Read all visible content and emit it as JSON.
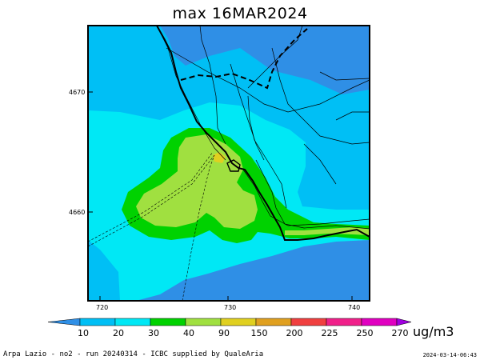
{
  "title": "max 16MAR2024",
  "map": {
    "x_ticks": [
      "720",
      "730",
      "740"
    ],
    "y_ticks": [
      "4670",
      "4660"
    ],
    "colors": {
      "lt10": "#2f8fe6",
      "c10_20": "#00bff5",
      "c20_30": "#00e8f5",
      "c30_40": "#00d200",
      "c40_90": "#a0e040",
      "c90_150": "#e0d020",
      "c150_200": "#e0a020",
      "c200_225": "#f04040",
      "c225_250": "#f0208a",
      "c250_270": "#e000c0",
      "gt270": "#a000e0"
    }
  },
  "colorbar": {
    "labels": [
      "10",
      "20",
      "30",
      "40",
      "90",
      "150",
      "200",
      "225",
      "250",
      "270"
    ],
    "colors": [
      "#2f8fe6",
      "#00bff5",
      "#00e8f5",
      "#00d200",
      "#a0e040",
      "#e0d020",
      "#e0a020",
      "#f04040",
      "#f0208a",
      "#e000c0",
      "#a000e0"
    ]
  },
  "units": "ug/m3",
  "footer": {
    "left": "Arpa Lazio - no2 - run 20240314 - ICBC supplied by QualeAria",
    "right": "2024-03-14-06:43"
  }
}
